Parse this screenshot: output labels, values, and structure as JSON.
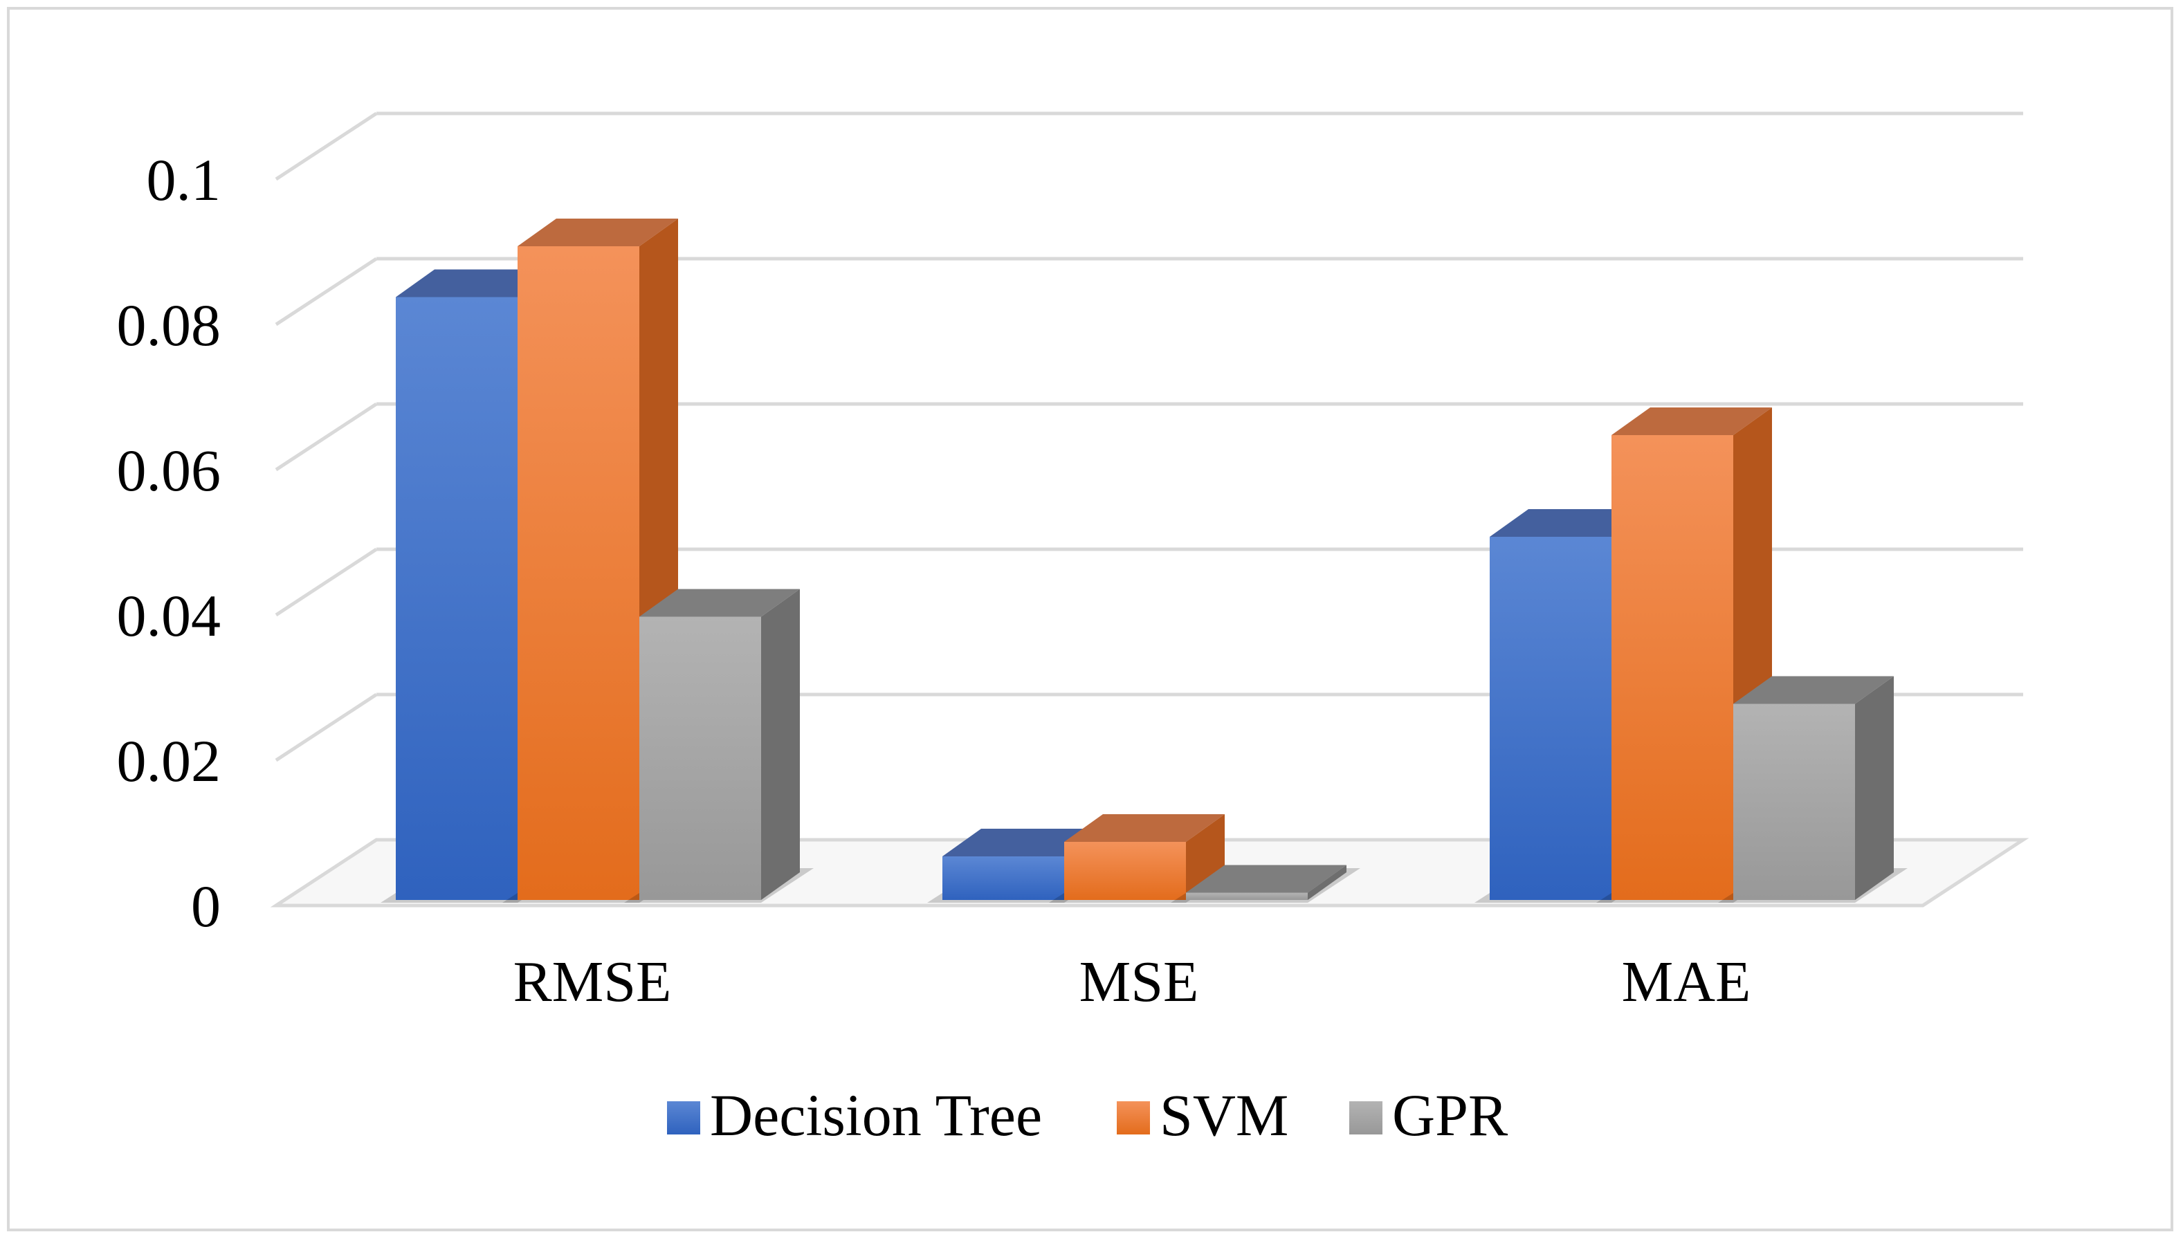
{
  "chart_data": {
    "type": "bar",
    "style": "3d-clustered-column",
    "title": "",
    "xlabel": "",
    "ylabel": "",
    "categories": [
      "RMSE",
      "MSE",
      "MAE"
    ],
    "series": [
      {
        "name": "Decision Tree",
        "values": [
          0.083,
          0.006,
          0.05
        ],
        "color": "#4472c4"
      },
      {
        "name": "SVM",
        "values": [
          0.09,
          0.008,
          0.064
        ],
        "color": "#ed7d31"
      },
      {
        "name": "GPR",
        "values": [
          0.039,
          0.001,
          0.027
        ],
        "color": "#a5a5a5"
      }
    ],
    "ylim": [
      0,
      0.1
    ],
    "yticks": [
      "0",
      "0.02",
      "0.04",
      "0.06",
      "0.08",
      "0.1"
    ],
    "grid": true,
    "legend_position": "bottom"
  }
}
